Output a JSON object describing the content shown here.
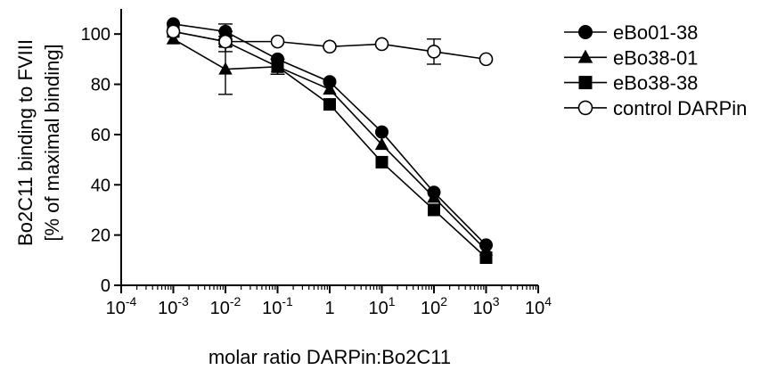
{
  "chart_data": {
    "type": "line",
    "xscale": "log",
    "ylabel_line1": "Bo2C11 binding to FVIII",
    "ylabel_line2": "[% of maximal binding]",
    "xlabel": "molar ratio DARPin:Bo2C11",
    "xlim": [
      0.0001,
      10000
    ],
    "ylim": [
      0,
      110
    ],
    "yticks": [
      0,
      20,
      40,
      60,
      80,
      100
    ],
    "xticks": [
      {
        "value": 0.0001,
        "base": "10",
        "exp": "-4"
      },
      {
        "value": 0.001,
        "base": "10",
        "exp": "-3"
      },
      {
        "value": 0.01,
        "base": "10",
        "exp": "-2"
      },
      {
        "value": 0.1,
        "base": "10",
        "exp": "-1"
      },
      {
        "value": 1,
        "base": "1",
        "exp": ""
      },
      {
        "value": 10,
        "base": "10",
        "exp": "1"
      },
      {
        "value": 100,
        "base": "10",
        "exp": "2"
      },
      {
        "value": 1000,
        "base": "10",
        "exp": "3"
      },
      {
        "value": 10000,
        "base": "10",
        "exp": "4"
      }
    ],
    "x": [
      0.001,
      0.01,
      0.1,
      1,
      10,
      100,
      1000
    ],
    "legend_position": "top-right",
    "series": [
      {
        "name": "eBo01-38",
        "marker": "filled-circle",
        "values": [
          104,
          101,
          90,
          81,
          61,
          37,
          16
        ],
        "err": [
          1,
          3,
          1,
          1,
          1,
          1,
          1
        ]
      },
      {
        "name": "eBo38-01",
        "marker": "filled-triangle",
        "values": [
          98,
          86,
          87,
          78,
          56,
          35,
          14
        ],
        "err": [
          1,
          10,
          3,
          1,
          1,
          1,
          1
        ]
      },
      {
        "name": "eBo38-38",
        "marker": "filled-square",
        "values": [
          101,
          97,
          87,
          72,
          49,
          30,
          11
        ],
        "err": [
          1,
          4,
          3,
          1,
          1,
          1,
          1
        ]
      },
      {
        "name": "control DARPin",
        "marker": "open-circle",
        "values": [
          101,
          97,
          97,
          95,
          96,
          93,
          90
        ],
        "err": [
          1,
          2,
          1,
          1,
          1,
          5,
          1
        ]
      }
    ],
    "grid": false
  }
}
